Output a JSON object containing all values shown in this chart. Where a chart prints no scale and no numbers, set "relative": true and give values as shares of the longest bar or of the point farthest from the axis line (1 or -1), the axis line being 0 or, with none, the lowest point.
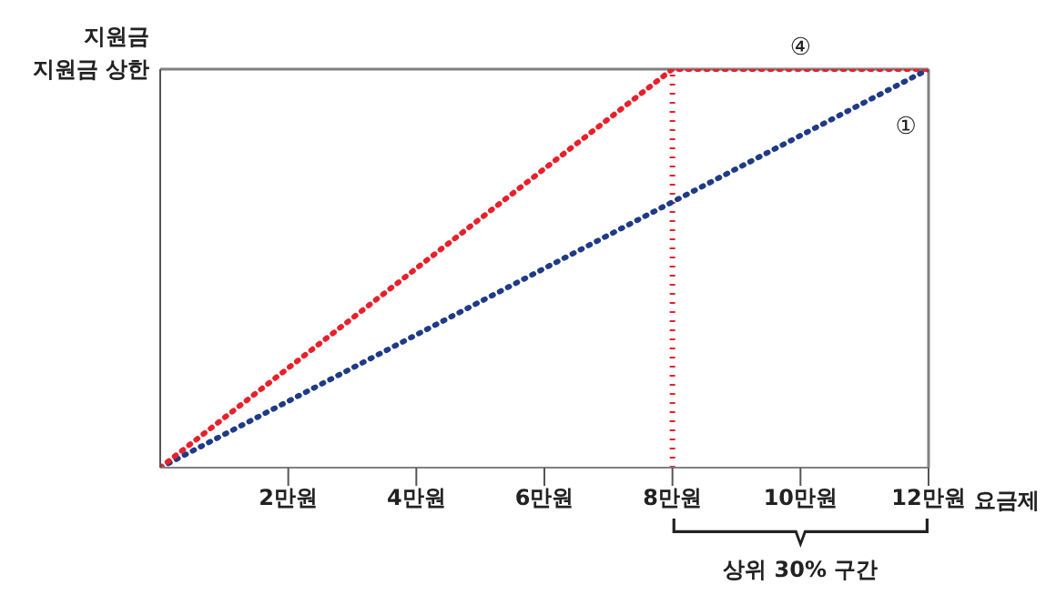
{
  "chart_data": {
    "type": "line",
    "ylabel": "지원금",
    "xlabel": "요금제",
    "relative": true,
    "xlim": [
      0,
      12
    ],
    "xticks": [
      {
        "value": 2,
        "label": "2만원"
      },
      {
        "value": 4,
        "label": "4만원"
      },
      {
        "value": 6,
        "label": "6만원"
      },
      {
        "value": 8,
        "label": "8만원"
      },
      {
        "value": 10,
        "label": "10만원"
      },
      {
        "value": 12,
        "label": "12만원"
      }
    ],
    "series": [
      {
        "color": "#1f3b87",
        "x": [
          0,
          12
        ],
        "values": [
          0,
          1
        ]
      },
      {
        "color": "#e8202a",
        "x": [
          0,
          8,
          12
        ],
        "values": [
          0,
          1,
          1
        ]
      }
    ],
    "ref_lines": [
      {
        "axis": "y",
        "value": 1,
        "label": "지원금 상한",
        "color": "#808080",
        "line_style": "solid"
      },
      {
        "axis": "x",
        "value": 8,
        "label": null,
        "color": "#e8202a",
        "line_style": "dotted"
      },
      {
        "axis": "x",
        "value": 12,
        "label": null,
        "color": "#808080",
        "line_style": "solid"
      }
    ],
    "annotations": [
      {
        "text": "④",
        "x": 10,
        "y": 1
      },
      {
        "text": "①",
        "x": 11.25,
        "y": 0.9375
      },
      "상위 30% 구간"
    ],
    "line_style": "dotted",
    "marker": "none"
  }
}
